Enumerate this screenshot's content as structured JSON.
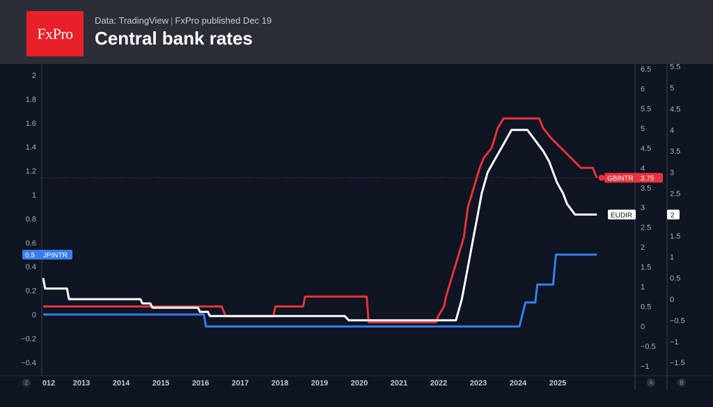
{
  "header": {
    "logo_text": "FxPro",
    "source": "Data: TradingView",
    "published": "FxPro published Dec 19",
    "title": "Central bank rates"
  },
  "colors": {
    "background": "#0f1522",
    "header_bg": "#2b2e37",
    "logo_bg": "#e8202a",
    "JPINTR": "#3a7df0",
    "GBINTR": "#e8323c",
    "EUDIR": "#ffffff"
  },
  "chart_data": {
    "type": "line",
    "x_tick_labels": [
      "012",
      "2013",
      "2014",
      "2015",
      "2016",
      "2017",
      "2018",
      "2019",
      "2020",
      "2021",
      "2022",
      "2023",
      "2024",
      "2025"
    ],
    "axis_corner_labels": {
      "left": "Z",
      "right_a": "A",
      "right_b": "B"
    },
    "y_axes": [
      {
        "id": "left",
        "ylim": [
          -0.47,
          2.05
        ],
        "ticks": [
          "2",
          "1.8",
          "1.6",
          "1.4",
          "1.2",
          "1",
          "0.8",
          "0.6",
          "0.4",
          "0.2",
          "0",
          "−0.2",
          "−0.4"
        ]
      },
      {
        "id": "right_a",
        "ylim": [
          -1.1,
          6.6
        ],
        "ticks": [
          "6.5",
          "6",
          "5.5",
          "5",
          "4.5",
          "4",
          "3.5",
          "3",
          "2.5",
          "2",
          "1.5",
          "1",
          "0.5",
          "0",
          "−0.5",
          "−1"
        ]
      },
      {
        "id": "right_b",
        "ylim": [
          -1.65,
          5.6
        ],
        "ticks": [
          "5.5",
          "5",
          "4.5",
          "4",
          "3.5",
          "3",
          "2.5",
          "2",
          "1.5",
          "1",
          "0.5",
          "0",
          "−0.5",
          "−1",
          "−1.5"
        ]
      }
    ],
    "series": [
      {
        "name": "JPINTR",
        "axis": "left",
        "last_value": "0.5",
        "points": [
          [
            2012.0,
            0.0
          ],
          [
            2016.05,
            0.0
          ],
          [
            2016.1,
            -0.1
          ],
          [
            2024.0,
            -0.1
          ],
          [
            2024.15,
            0.1
          ],
          [
            2024.4,
            0.1
          ],
          [
            2024.45,
            0.25
          ],
          [
            2024.85,
            0.25
          ],
          [
            2024.92,
            0.5
          ],
          [
            2025.95,
            0.5
          ]
        ]
      },
      {
        "name": "GBINTR",
        "axis": "right_a",
        "last_value": "3.75",
        "points": [
          [
            2012.0,
            0.5
          ],
          [
            2016.5,
            0.5
          ],
          [
            2016.6,
            0.25
          ],
          [
            2017.8,
            0.25
          ],
          [
            2017.85,
            0.5
          ],
          [
            2018.55,
            0.5
          ],
          [
            2018.6,
            0.75
          ],
          [
            2020.15,
            0.75
          ],
          [
            2020.2,
            0.1
          ],
          [
            2021.9,
            0.1
          ],
          [
            2021.95,
            0.25
          ],
          [
            2022.1,
            0.5
          ],
          [
            2022.15,
            0.75
          ],
          [
            2022.3,
            1.25
          ],
          [
            2022.45,
            1.75
          ],
          [
            2022.6,
            2.25
          ],
          [
            2022.7,
            3.0
          ],
          [
            2022.85,
            3.5
          ],
          [
            2023.0,
            4.0
          ],
          [
            2023.1,
            4.25
          ],
          [
            2023.3,
            4.5
          ],
          [
            2023.45,
            5.0
          ],
          [
            2023.6,
            5.25
          ],
          [
            2024.5,
            5.25
          ],
          [
            2024.6,
            5.0
          ],
          [
            2024.8,
            4.75
          ],
          [
            2025.05,
            4.5
          ],
          [
            2025.3,
            4.25
          ],
          [
            2025.55,
            4.0
          ],
          [
            2025.85,
            4.0
          ],
          [
            2025.95,
            3.75
          ]
        ]
      },
      {
        "name": "EUDIR",
        "axis": "right_b",
        "last_value": "2",
        "points": [
          [
            2012.0,
            0.5
          ],
          [
            2012.05,
            0.25
          ],
          [
            2012.6,
            0.25
          ],
          [
            2012.65,
            0.0
          ],
          [
            2014.45,
            0.0
          ],
          [
            2014.5,
            -0.1
          ],
          [
            2014.7,
            -0.1
          ],
          [
            2014.75,
            -0.2
          ],
          [
            2015.9,
            -0.2
          ],
          [
            2015.95,
            -0.3
          ],
          [
            2016.15,
            -0.3
          ],
          [
            2016.2,
            -0.4
          ],
          [
            2019.6,
            -0.4
          ],
          [
            2019.7,
            -0.5
          ],
          [
            2022.4,
            -0.5
          ],
          [
            2022.55,
            0.0
          ],
          [
            2022.7,
            0.75
          ],
          [
            2022.85,
            1.5
          ],
          [
            2022.95,
            2.0
          ],
          [
            2023.05,
            2.5
          ],
          [
            2023.2,
            3.0
          ],
          [
            2023.35,
            3.25
          ],
          [
            2023.5,
            3.5
          ],
          [
            2023.65,
            3.75
          ],
          [
            2023.8,
            4.0
          ],
          [
            2024.2,
            4.0
          ],
          [
            2024.4,
            3.75
          ],
          [
            2024.6,
            3.5
          ],
          [
            2024.75,
            3.25
          ],
          [
            2024.85,
            3.0
          ],
          [
            2024.95,
            2.75
          ],
          [
            2025.1,
            2.5
          ],
          [
            2025.2,
            2.25
          ],
          [
            2025.4,
            2.0
          ],
          [
            2025.95,
            2.0
          ]
        ]
      }
    ],
    "grid": false,
    "reference_line": {
      "series": "GBINTR",
      "value": 3.75,
      "style": "dotted"
    }
  }
}
